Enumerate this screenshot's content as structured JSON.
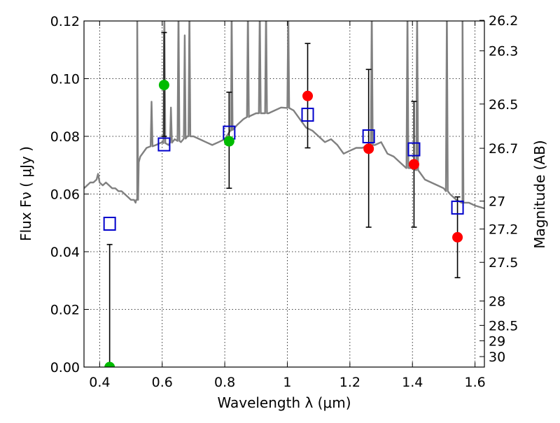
{
  "chart_data": {
    "type": "scatter",
    "xlabel": "Wavelength  λ (μm)",
    "ylabel": "Flux  Fν  ( μJy )",
    "y2label": "Magnitude (AB)",
    "xlim": [
      0.35,
      1.63
    ],
    "ylim": [
      0.0,
      0.12
    ],
    "xticks": [
      0.4,
      0.6,
      0.8,
      1.0,
      1.2,
      1.4,
      1.6
    ],
    "xtick_labels": [
      "0.4",
      "0.6",
      "0.8",
      "1",
      "1.2",
      "1.4",
      "1.6"
    ],
    "yticks": [
      0.0,
      0.02,
      0.04,
      0.06,
      0.08,
      0.1,
      0.12
    ],
    "ytick_labels": [
      "0.00",
      "0.02",
      "0.04",
      "0.06",
      "0.08",
      "0.10",
      "0.12"
    ],
    "y2ticks": [
      {
        "mag": 26.2,
        "label": "26.2"
      },
      {
        "mag": 26.3,
        "label": "26.3"
      },
      {
        "mag": 26.5,
        "label": "26.5"
      },
      {
        "mag": 26.7,
        "label": "26.7"
      },
      {
        "mag": 27.0,
        "label": "27"
      },
      {
        "mag": 27.2,
        "label": "27.2"
      },
      {
        "mag": 27.5,
        "label": "27.5"
      },
      {
        "mag": 28.0,
        "label": "28"
      },
      {
        "mag": 28.5,
        "label": "28.5"
      },
      {
        "mag": 29.0,
        "label": "29"
      },
      {
        "mag": 30.0,
        "label": "30"
      }
    ],
    "grid": true,
    "colors": {
      "model": "#808080",
      "model_photometry": "#0000cc",
      "detection_green": "#00bb00",
      "detection_red": "#ff0000",
      "errorbar": "#000000"
    },
    "series": [
      {
        "kind": "spectrum",
        "x": [
          0.35,
          0.36,
          0.37,
          0.38,
          0.39,
          0.395,
          0.4,
          0.41,
          0.42,
          0.43,
          0.44,
          0.45,
          0.46,
          0.47,
          0.48,
          0.49,
          0.5,
          0.51,
          0.515,
          0.52,
          0.525,
          0.53,
          0.55,
          0.58,
          0.6,
          0.62,
          0.64,
          0.66,
          0.68,
          0.7,
          0.72,
          0.74,
          0.76,
          0.78,
          0.8,
          0.82,
          0.84,
          0.86,
          0.88,
          0.9,
          0.92,
          0.94,
          0.96,
          0.98,
          1.0,
          1.02,
          1.04,
          1.06,
          1.08,
          1.1,
          1.12,
          1.14,
          1.16,
          1.18,
          1.2,
          1.22,
          1.24,
          1.26,
          1.28,
          1.3,
          1.32,
          1.34,
          1.36,
          1.38,
          1.4,
          1.42,
          1.44,
          1.46,
          1.48,
          1.5,
          1.52,
          1.54,
          1.56,
          1.58,
          1.6,
          1.63
        ],
        "y": [
          0.062,
          0.063,
          0.064,
          0.064,
          0.065,
          0.067,
          0.064,
          0.063,
          0.064,
          0.063,
          0.062,
          0.062,
          0.061,
          0.061,
          0.06,
          0.059,
          0.058,
          0.058,
          0.057,
          0.058,
          0.071,
          0.073,
          0.076,
          0.077,
          0.078,
          0.077,
          0.079,
          0.078,
          0.08,
          0.08,
          0.079,
          0.078,
          0.077,
          0.078,
          0.079,
          0.082,
          0.084,
          0.086,
          0.087,
          0.088,
          0.088,
          0.088,
          0.089,
          0.09,
          0.09,
          0.089,
          0.086,
          0.083,
          0.082,
          0.08,
          0.078,
          0.079,
          0.077,
          0.074,
          0.075,
          0.076,
          0.076,
          0.077,
          0.077,
          0.078,
          0.074,
          0.073,
          0.071,
          0.069,
          0.069,
          0.068,
          0.065,
          0.064,
          0.063,
          0.062,
          0.06,
          0.058,
          0.057,
          0.057,
          0.056,
          0.055
        ]
      },
      {
        "kind": "spectrum_lines",
        "lines": [
          {
            "x": 0.52,
            "peak": 0.125
          },
          {
            "x": 0.566,
            "peak": 0.092
          },
          {
            "x": 0.607,
            "peak": 0.125
          },
          {
            "x": 0.628,
            "peak": 0.09
          },
          {
            "x": 0.652,
            "peak": 0.125
          },
          {
            "x": 0.672,
            "peak": 0.115
          },
          {
            "x": 0.687,
            "peak": 0.125
          },
          {
            "x": 0.822,
            "peak": 0.125
          },
          {
            "x": 0.874,
            "peak": 0.125
          },
          {
            "x": 0.912,
            "peak": 0.125
          },
          {
            "x": 0.932,
            "peak": 0.125
          },
          {
            "x": 1.003,
            "peak": 0.125
          },
          {
            "x": 1.27,
            "peak": 0.125
          },
          {
            "x": 1.384,
            "peak": 0.125
          },
          {
            "x": 1.415,
            "peak": 0.125
          },
          {
            "x": 1.51,
            "peak": 0.125
          },
          {
            "x": 1.56,
            "peak": 0.125
          }
        ]
      },
      {
        "kind": "model_photometry",
        "x": [
          0.432,
          0.606,
          0.814,
          1.065,
          1.26,
          1.405,
          1.544
        ],
        "y": [
          0.0497,
          0.0772,
          0.0813,
          0.0875,
          0.08,
          0.0755,
          0.0553
        ]
      },
      {
        "kind": "detections",
        "points": [
          {
            "x": 0.432,
            "y": 0.0,
            "yerr_low": 0.0,
            "yerr_high": 0.0425,
            "color": "green"
          },
          {
            "x": 0.606,
            "y": 0.0978,
            "yerr_low": 0.0178,
            "yerr_high": 0.0182,
            "color": "green"
          },
          {
            "x": 0.814,
            "y": 0.0783,
            "yerr_low": 0.0163,
            "yerr_high": 0.017,
            "color": "green"
          },
          {
            "x": 1.065,
            "y": 0.094,
            "yerr_low": 0.018,
            "yerr_high": 0.0182,
            "color": "red"
          },
          {
            "x": 1.26,
            "y": 0.0757,
            "yerr_low": 0.0272,
            "yerr_high": 0.0275,
            "color": "red"
          },
          {
            "x": 1.405,
            "y": 0.0703,
            "yerr_low": 0.0218,
            "yerr_high": 0.0218,
            "color": "red"
          },
          {
            "x": 1.544,
            "y": 0.045,
            "yerr_low": 0.014,
            "yerr_high": 0.014,
            "color": "red"
          }
        ]
      }
    ]
  }
}
